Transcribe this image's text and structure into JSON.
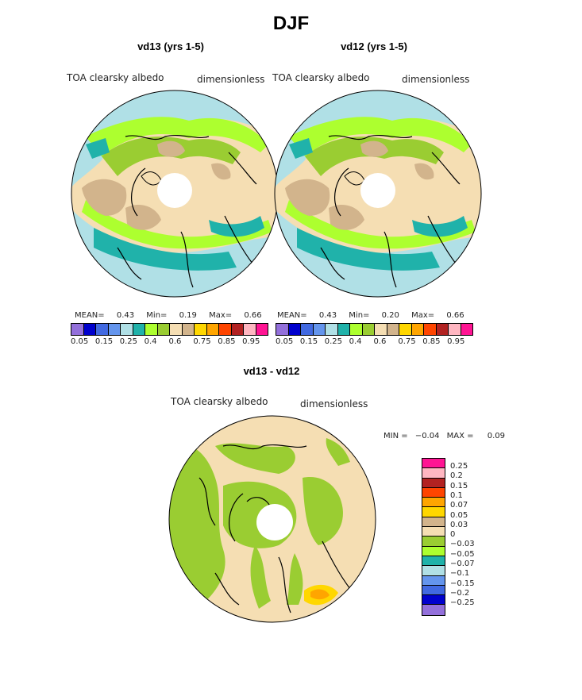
{
  "title": "DJF",
  "panels": [
    {
      "title": "vd13 (yrs 1-5)",
      "label_left": "TOA clearsky albedo",
      "label_right": "dimensionless",
      "mean_label": "MEAN=",
      "mean": "0.43",
      "min_label": "Min=",
      "min": "0.19",
      "max_label": "Max=",
      "max": "0.66"
    },
    {
      "title": "vd12 (yrs 1-5)",
      "label_left": "TOA clearsky albedo",
      "label_right": "dimensionless",
      "mean_label": "MEAN=",
      "mean": "0.43",
      "min_label": "Min=",
      "min": "0.20",
      "max_label": "Max=",
      "max": "0.66"
    }
  ],
  "abs_colorbar": {
    "colors": [
      "#9370DB",
      "#0000CD",
      "#4169E1",
      "#6495ED",
      "#B0E0E6",
      "#20B2AA",
      "#ADFF2F",
      "#9ACD32",
      "#F5DEB3",
      "#D2B48C",
      "#FFD700",
      "#FFA500",
      "#FF4500",
      "#B22222",
      "#FFB6C1",
      "#FF1493"
    ],
    "tick_labels": [
      "0.05",
      "0.15",
      "0.25",
      "0.4",
      "0.6",
      "0.75",
      "0.85",
      "0.95"
    ]
  },
  "diff_panel": {
    "title": "vd13 - vd12",
    "label_left": "TOA clearsky albedo",
    "label_right": "dimensionless",
    "min_label": "MIN =",
    "min": "−0.04",
    "max_label": "MAX =",
    "max": "0.09"
  },
  "diff_colorbar": {
    "colors": [
      "#FF1493",
      "#FFB6C1",
      "#B22222",
      "#FF4500",
      "#FFA500",
      "#FFD700",
      "#D2B48C",
      "#F5DEB3",
      "#9ACD32",
      "#ADFF2F",
      "#20B2AA",
      "#B0E0E6",
      "#6495ED",
      "#4169E1",
      "#0000CD",
      "#9370DB"
    ],
    "tick_labels": [
      "0.25",
      "0.2",
      "0.15",
      "0.1",
      "0.07",
      "0.05",
      "0.03",
      "0",
      "−0.03",
      "−0.05",
      "−0.07",
      "−0.1",
      "−0.15",
      "−0.2",
      "−0.25"
    ]
  }
}
